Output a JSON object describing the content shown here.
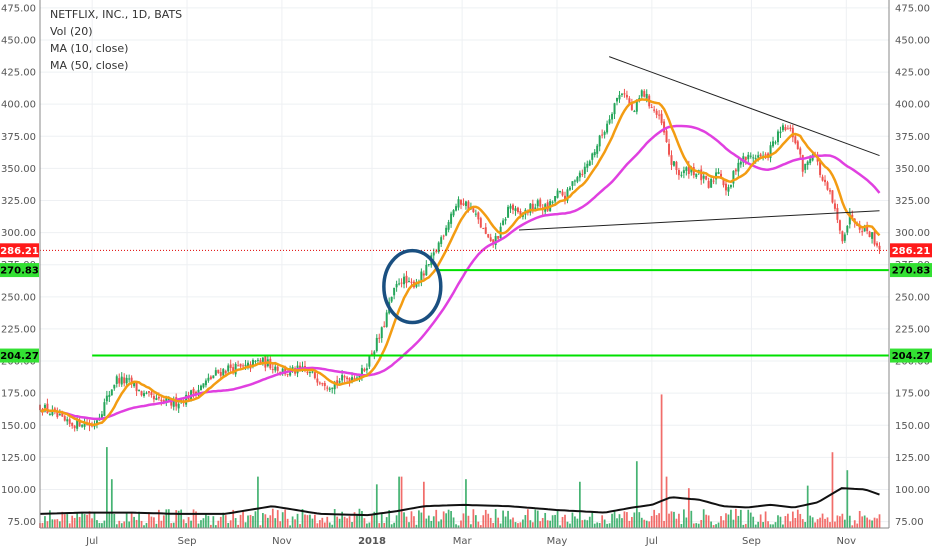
{
  "legend": {
    "symbol": "NETFLIX, INC., 1D, BATS",
    "vol": "Vol (20)",
    "ma10": "MA (10, close)",
    "ma50": "MA (50, close)"
  },
  "colors": {
    "up": "#26a65b",
    "down": "#ef5350",
    "ma10": "#f39c12",
    "ma50": "#e040e0",
    "volma": "#111111",
    "support": "#00e000",
    "price_line": "#e00000",
    "trendline": "#222222",
    "annotation": "#1a4f80",
    "badge_red": "#ff1a1a",
    "badge_green": "#33e033"
  },
  "chart_data": {
    "type": "candlestick",
    "title": "NETFLIX, INC., 1D, BATS",
    "x_ticks": [
      {
        "label": "Jul",
        "x": 6.2
      },
      {
        "label": "Sep",
        "x": 8.2
      },
      {
        "label": "Nov",
        "x": 10.2
      },
      {
        "label": "2018",
        "x": 12.1
      },
      {
        "label": "Mar",
        "x": 14.0
      },
      {
        "label": "May",
        "x": 16.0
      },
      {
        "label": "Jul",
        "x": 18.0
      },
      {
        "label": "Sep",
        "x": 20.1
      },
      {
        "label": "Nov",
        "x": 22.1
      }
    ],
    "xlim": [
      5.1,
      23.0
    ],
    "ylim": [
      70,
      478
    ],
    "y_ticks": [
      75,
      100,
      125,
      150,
      175,
      200,
      225,
      250,
      275,
      300,
      325,
      350,
      375,
      400,
      425,
      450,
      475
    ],
    "y_tick_labels": [
      "75.00",
      "100.00",
      "125.00",
      "150.00",
      "175.00",
      "200.00",
      "225.00",
      "250.00",
      "275.00",
      "300.00",
      "325.00",
      "350.00",
      "375.00",
      "400.00",
      "425.00",
      "450.00",
      "475.00"
    ],
    "price_path": [
      [
        5.1,
        165
      ],
      [
        5.4,
        158
      ],
      [
        5.7,
        150
      ],
      [
        6.0,
        153
      ],
      [
        6.2,
        149
      ],
      [
        6.4,
        162
      ],
      [
        6.7,
        186
      ],
      [
        7.0,
        183
      ],
      [
        7.3,
        173
      ],
      [
        7.6,
        168
      ],
      [
        7.9,
        167
      ],
      [
        8.2,
        172
      ],
      [
        8.5,
        180
      ],
      [
        8.8,
        190
      ],
      [
        9.1,
        195
      ],
      [
        9.4,
        194
      ],
      [
        9.7,
        200
      ],
      [
        10.0,
        197
      ],
      [
        10.3,
        191
      ],
      [
        10.6,
        193
      ],
      [
        10.9,
        188
      ],
      [
        11.2,
        182
      ],
      [
        11.6,
        187
      ],
      [
        11.9,
        191
      ],
      [
        12.1,
        207
      ],
      [
        12.3,
        222
      ],
      [
        12.5,
        248
      ],
      [
        12.7,
        265
      ],
      [
        12.9,
        258
      ],
      [
        13.2,
        268
      ],
      [
        13.4,
        282
      ],
      [
        13.6,
        300
      ],
      [
        13.8,
        318
      ],
      [
        14.0,
        325
      ],
      [
        14.2,
        318
      ],
      [
        14.4,
        305
      ],
      [
        14.6,
        290
      ],
      [
        14.8,
        300
      ],
      [
        15.0,
        322
      ],
      [
        15.2,
        312
      ],
      [
        15.4,
        318
      ],
      [
        15.6,
        322
      ],
      [
        15.8,
        318
      ],
      [
        16.0,
        330
      ],
      [
        16.2,
        328
      ],
      [
        16.4,
        345
      ],
      [
        16.6,
        350
      ],
      [
        16.8,
        365
      ],
      [
        17.0,
        380
      ],
      [
        17.2,
        400
      ],
      [
        17.4,
        412
      ],
      [
        17.6,
        392
      ],
      [
        17.8,
        410
      ],
      [
        18.0,
        398
      ],
      [
        18.2,
        385
      ],
      [
        18.4,
        355
      ],
      [
        18.6,
        345
      ],
      [
        18.8,
        350
      ],
      [
        19.0,
        345
      ],
      [
        19.2,
        335
      ],
      [
        19.4,
        350
      ],
      [
        19.6,
        330
      ],
      [
        19.8,
        355
      ],
      [
        20.0,
        358
      ],
      [
        20.2,
        360
      ],
      [
        20.4,
        358
      ],
      [
        20.6,
        372
      ],
      [
        20.8,
        382
      ],
      [
        21.0,
        375
      ],
      [
        21.2,
        348
      ],
      [
        21.4,
        365
      ],
      [
        21.6,
        340
      ],
      [
        21.8,
        325
      ],
      [
        22.0,
        295
      ],
      [
        22.2,
        315
      ],
      [
        22.4,
        305
      ],
      [
        22.6,
        300
      ],
      [
        22.8,
        288
      ]
    ],
    "price_noise": 4,
    "annotations": {
      "last_price": "286.21",
      "last_price_value": 286.21,
      "support_upper": "270.83",
      "support_upper_value": 270.83,
      "support_lower": "204.27",
      "support_lower_value": 204.27,
      "support_lower_start_x": 6.2,
      "support_upper_start_x": 13.5,
      "upper_trendline": [
        [
          17.1,
          437
        ],
        [
          22.8,
          360
        ]
      ],
      "lower_trendline": [
        [
          15.2,
          302
        ],
        [
          22.8,
          317
        ]
      ],
      "circle": {
        "cx": 12.95,
        "cy": 258,
        "rx": 0.6,
        "ry": 28
      }
    },
    "ma_smoothing": {
      "ma10": 10,
      "ma50": 40
    },
    "volume": {
      "base_min": 72,
      "base_max": 85,
      "spikes": [
        [
          6.5,
          133
        ],
        [
          6.6,
          108
        ],
        [
          9.7,
          110
        ],
        [
          12.7,
          110
        ],
        [
          13.2,
          106
        ],
        [
          14.1,
          108
        ],
        [
          16.5,
          106
        ],
        [
          17.7,
          122
        ],
        [
          18.2,
          174
        ],
        [
          18.3,
          110
        ],
        [
          21.3,
          103
        ],
        [
          21.8,
          129
        ],
        [
          22.1,
          115
        ],
        [
          12.2,
          104
        ],
        [
          18.8,
          101
        ]
      ],
      "ma_path": [
        [
          5.1,
          81
        ],
        [
          6.0,
          82
        ],
        [
          7.0,
          82
        ],
        [
          8.0,
          81
        ],
        [
          9.0,
          81
        ],
        [
          10.0,
          87
        ],
        [
          11.0,
          81
        ],
        [
          12.0,
          80
        ],
        [
          12.6,
          83
        ],
        [
          13.2,
          87
        ],
        [
          14.0,
          88
        ],
        [
          15.0,
          87
        ],
        [
          16.0,
          84
        ],
        [
          17.0,
          82
        ],
        [
          17.6,
          86
        ],
        [
          18.0,
          88
        ],
        [
          18.4,
          94
        ],
        [
          19.0,
          92
        ],
        [
          19.5,
          87
        ],
        [
          20.0,
          86
        ],
        [
          20.5,
          88
        ],
        [
          21.0,
          86
        ],
        [
          21.5,
          90
        ],
        [
          22.0,
          101
        ],
        [
          22.5,
          100
        ],
        [
          22.8,
          96
        ]
      ]
    }
  }
}
